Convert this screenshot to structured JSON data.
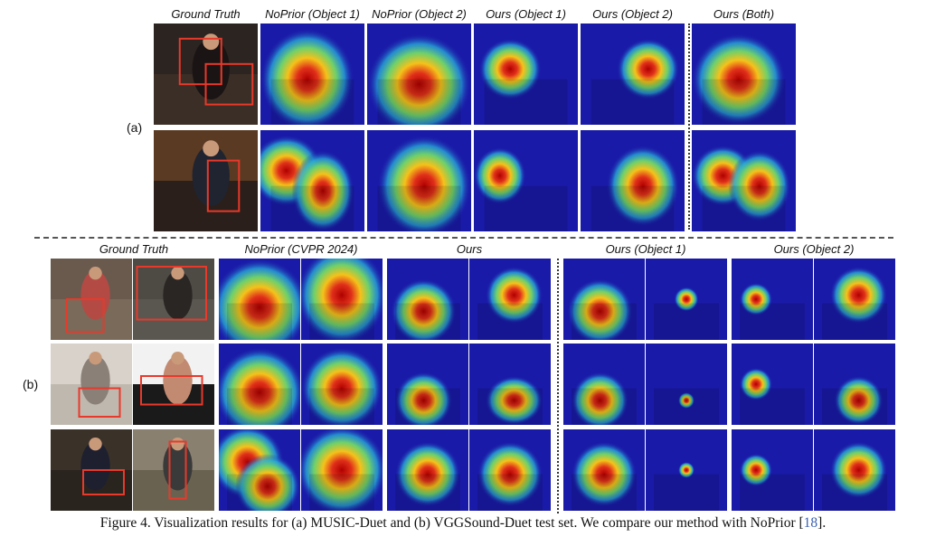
{
  "panel_a": {
    "label": "(a)",
    "headers": [
      "Ground Truth",
      "NoPrior (Object 1)",
      "NoPrior (Object 2)",
      "Ours (Object 1)",
      "Ours (Object 2)",
      "Ours (Both)"
    ]
  },
  "panel_b": {
    "label": "(b)",
    "headers": [
      "Ground Truth",
      "NoPrior (CVPR 2024)",
      "Ours",
      "Ours (Object 1)",
      "Ours (Object 2)"
    ]
  },
  "caption": {
    "text": "Figure 4. Visualization results for (a) MUSIC-Duet and (b) VGGSound-Duet test set. We compare our method with NoPrior [",
    "ref": "18",
    "end": "]."
  },
  "colors": {
    "heat_cold": "#1a1aa8",
    "heat_hot": "#c80000",
    "box": "#e8392b"
  }
}
